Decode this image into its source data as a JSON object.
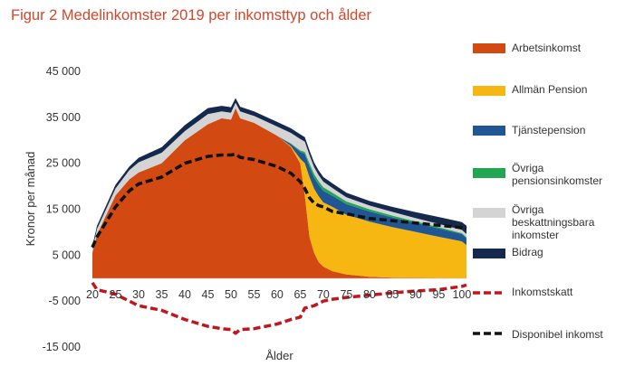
{
  "title": "Figur 2 Medelinkomster 2019 per inkomsttyp och ålder",
  "chart_data": {
    "type": "area",
    "stacked": true,
    "title": "Figur 2 Medelinkomster 2019 per inkomsttyp och ålder",
    "xlabel": "Ålder",
    "ylabel": "Kronor per månad",
    "xlim": [
      20,
      101
    ],
    "ylim": [
      -15000,
      45000
    ],
    "yticks": [
      45000,
      35000,
      25000,
      15000,
      5000,
      -5000,
      -15000
    ],
    "ytick_labels": [
      "45 000",
      "35 000",
      "25 000",
      "15 000",
      "5 000",
      "-5 000",
      "-15 000"
    ],
    "xticks": [
      20,
      25,
      30,
      35,
      40,
      45,
      50,
      55,
      60,
      65,
      70,
      75,
      80,
      85,
      90,
      95,
      100
    ],
    "xtick_labels": [
      "20",
      "25",
      "30",
      "35",
      "40",
      "45",
      "50",
      "55",
      "60",
      "65",
      "70",
      "75",
      "80",
      "85",
      "90",
      "95",
      "100"
    ],
    "x": [
      20,
      21,
      25,
      28,
      30,
      35,
      40,
      45,
      48,
      50,
      51,
      52,
      55,
      60,
      63,
      65,
      66,
      67,
      68,
      69,
      70,
      72,
      75,
      80,
      85,
      90,
      95,
      100,
      101
    ],
    "series": [
      {
        "name": "Arbetsinkomst",
        "color": "#d24a12",
        "kind": "area",
        "values": [
          5500,
          9500,
          18000,
          21500,
          23000,
          25000,
          30000,
          33500,
          34800,
          34500,
          37000,
          34800,
          33800,
          31000,
          28500,
          25000,
          18000,
          9000,
          5500,
          3500,
          2500,
          1500,
          800,
          300,
          100,
          50,
          0,
          0,
          0
        ]
      },
      {
        "name": "Allmän Pension",
        "color": "#f6b713",
        "kind": "area",
        "values": [
          0,
          0,
          0,
          0,
          0,
          0,
          0,
          0,
          0,
          0,
          0,
          0,
          0,
          0,
          200,
          1000,
          7000,
          13000,
          14000,
          14300,
          14000,
          14000,
          13000,
          12000,
          11000,
          10000,
          9000,
          8000,
          7200
        ]
      },
      {
        "name": "Tjänstepension",
        "color": "#1f5693",
        "kind": "area",
        "values": [
          0,
          0,
          0,
          0,
          0,
          0,
          0,
          0,
          0,
          0,
          0,
          0,
          0,
          0,
          500,
          1500,
          2000,
          2300,
          2400,
          2500,
          2500,
          2400,
          2300,
          2200,
          2100,
          2000,
          1800,
          1600,
          1500
        ]
      },
      {
        "name": "Övriga pensionsinkomster",
        "color": "#22a652",
        "kind": "area",
        "values": [
          0,
          0,
          0,
          0,
          0,
          0,
          0,
          0,
          0,
          0,
          0,
          0,
          0,
          0,
          100,
          300,
          500,
          700,
          800,
          800,
          800,
          700,
          600,
          500,
          400,
          300,
          300,
          200,
          200
        ]
      },
      {
        "name": "Övriga beskattningsbara inkomster",
        "color": "#d4d4d4",
        "kind": "area",
        "values": [
          800,
          1200,
          1500,
          2000,
          2200,
          2300,
          2000,
          2200,
          1500,
          1500,
          1200,
          1500,
          1500,
          2000,
          2300,
          2500,
          2200,
          1800,
          1500,
          1300,
          1200,
          1000,
          900,
          800,
          800,
          700,
          700,
          700,
          700
        ]
      },
      {
        "name": "Bidrag",
        "color": "#14294d",
        "kind": "area",
        "values": [
          700,
          700,
          800,
          800,
          1000,
          1200,
          1300,
          1300,
          1200,
          1200,
          1000,
          1000,
          1000,
          1000,
          1000,
          1000,
          1000,
          1000,
          1000,
          1000,
          1000,
          1000,
          1000,
          1000,
          1100,
          1300,
          1500,
          1700,
          1800
        ]
      },
      {
        "name": "Inkomstskatt",
        "color": "#c0161d",
        "kind": "dashed-line",
        "values": [
          -1000,
          -2500,
          -3500,
          -5000,
          -6000,
          -7000,
          -9000,
          -10500,
          -11000,
          -11200,
          -12000,
          -11200,
          -11000,
          -10000,
          -9000,
          -8500,
          -6500,
          -6300,
          -6000,
          -5500,
          -5000,
          -4600,
          -4200,
          -3700,
          -3200,
          -2800,
          -2500,
          -1800,
          -1500
        ]
      },
      {
        "name": "Disponibel inkomst",
        "color": "#111111",
        "kind": "dashed-line",
        "values": [
          6700,
          9000,
          15500,
          19000,
          20500,
          22000,
          25000,
          26500,
          26800,
          26800,
          27000,
          26300,
          25800,
          24300,
          22800,
          21000,
          19500,
          17500,
          16300,
          15800,
          15500,
          14500,
          14000,
          13000,
          12500,
          12000,
          11500,
          11000,
          10800
        ]
      }
    ]
  }
}
